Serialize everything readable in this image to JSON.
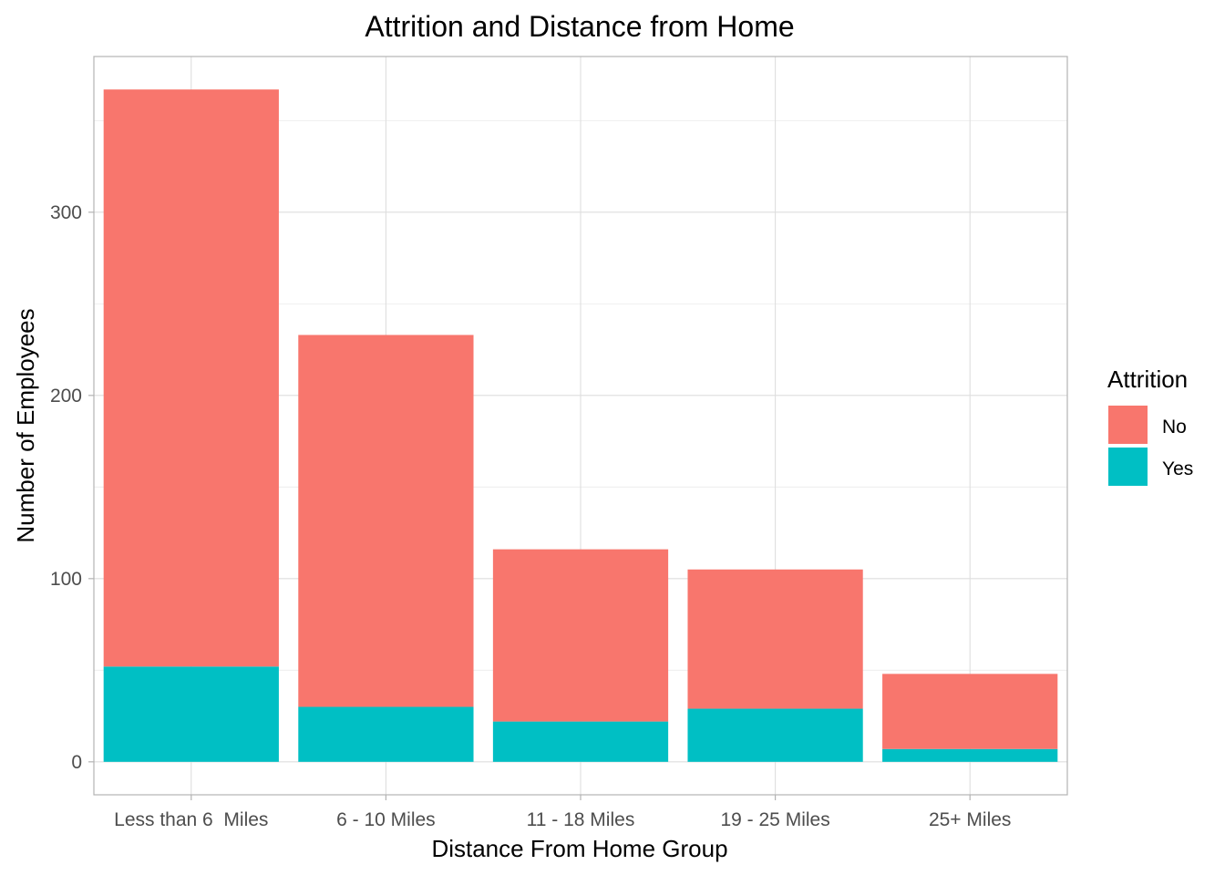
{
  "chart_data": {
    "type": "bar",
    "stacked": true,
    "title": "Attrition and Distance from Home",
    "xlabel": "Distance From Home Group",
    "ylabel": "Number of Employees",
    "categories": [
      "Less than 6  Miles",
      "6 - 10 Miles",
      "11 - 18 Miles",
      "19 - 25 Miles",
      "25+ Miles"
    ],
    "series": [
      {
        "name": "No",
        "color": "#F8766D",
        "values": [
          315,
          203,
          94,
          76,
          41
        ]
      },
      {
        "name": "Yes",
        "color": "#00BFC4",
        "values": [
          52,
          30,
          22,
          29,
          7
        ]
      }
    ],
    "ylim": [
      -18,
      385
    ],
    "yticks": [
      0,
      100,
      200,
      300
    ],
    "ytick_labels": [
      "0",
      "100",
      "200",
      "300"
    ],
    "grid": true,
    "legend": {
      "title": "Attrition",
      "position": "right",
      "entries": [
        "No",
        "Yes"
      ]
    }
  }
}
